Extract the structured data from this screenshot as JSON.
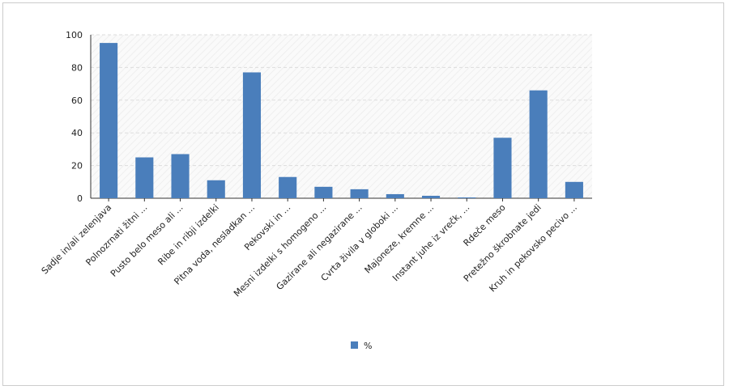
{
  "chart_data": {
    "type": "bar",
    "categories": [
      "Sadje in/ali zelenjava",
      "Polnozrnati žitni ...",
      "Pusto belo meso ali ...",
      "Ribe in ribji izdelki",
      "Pitna voda, nesladkan ...",
      "Pekovski in ...",
      "Mesni izdelki s homogeno ...",
      "Gazirane ali negazirane ...",
      "Cvrta živila v globoki ...",
      "Majoneze, kremne ...",
      "Instant juhe iz vrečk, ...",
      "Rdeče meso",
      "Pretežno škrobnate jedi",
      "Kruh in pekovsko pecivo ..."
    ],
    "series": [
      {
        "name": "%",
        "color": "#4a7ebb",
        "values": [
          95,
          25,
          27,
          11,
          77,
          13,
          7,
          5.5,
          2.5,
          1.5,
          0.5,
          37,
          66,
          10
        ]
      }
    ],
    "ylim": [
      0,
      100
    ],
    "yticks": [
      0,
      20,
      40,
      60,
      80,
      100
    ],
    "grid": true,
    "legend": "bottom"
  }
}
